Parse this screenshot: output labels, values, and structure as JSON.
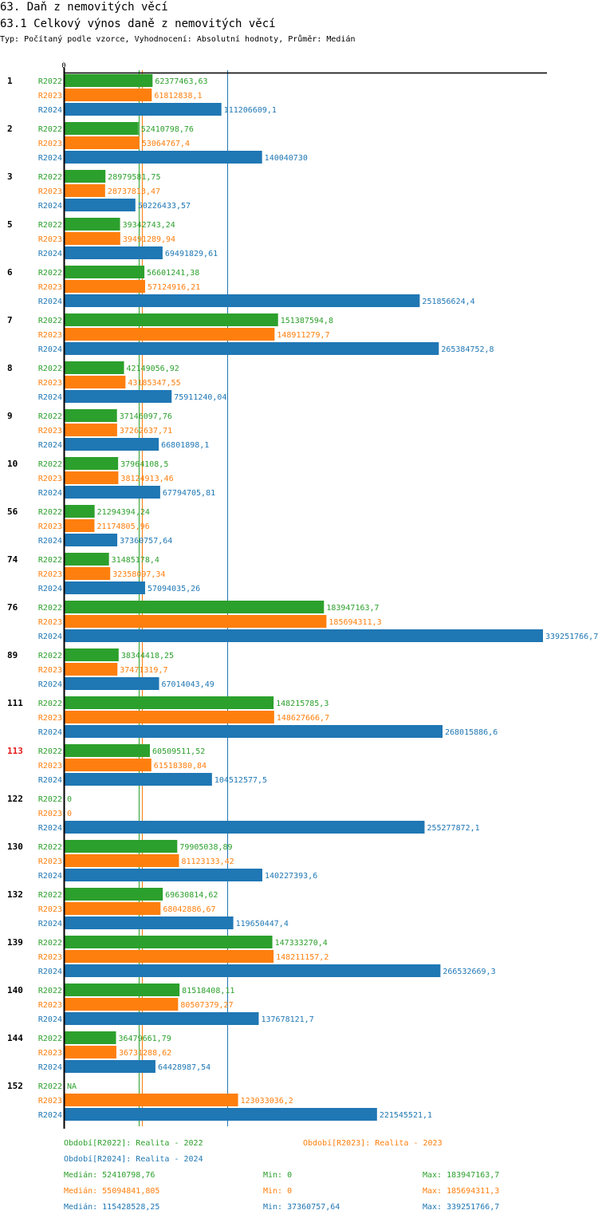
{
  "header": {
    "title": "63. Daň z nemovitých věcí",
    "subtitle": "63.1 Celkový výnos daně z nemovitých věcí",
    "description": "Typ: Počítaný podle vzorce, Vyhodnocení: Absolutní hodnoty, Průměr: Medián"
  },
  "chart_data": {
    "type": "bar",
    "orientation": "horizontal",
    "title": "63.1 Celkový výnos daně z nemovitých věcí",
    "xlabel": "",
    "ylabel": "",
    "xlim": [
      0,
      339251766.7
    ],
    "axis_zero_label": "0",
    "grid": false,
    "highlighted_category": "113",
    "highlight_color": "#e41a1c",
    "categories": [
      "1",
      "2",
      "3",
      "5",
      "6",
      "7",
      "8",
      "9",
      "10",
      "56",
      "74",
      "76",
      "89",
      "111",
      "113",
      "122",
      "130",
      "132",
      "139",
      "140",
      "144",
      "152"
    ],
    "series": [
      {
        "name": "R2022",
        "color": "#2ca02c",
        "values": [
          62377463.63,
          52410798.76,
          28979581.75,
          39342743.24,
          56601241.38,
          151387594.8,
          42149056.92,
          37146097.76,
          37964108.5,
          21294394.24,
          31485178.4,
          183947163.7,
          38344418.25,
          148215785.3,
          60509511.52,
          0,
          79905038.89,
          69630814.62,
          147333270.4,
          81518408.11,
          36479661.79,
          null
        ],
        "labels": [
          "62377463,63",
          "52410798,76",
          "28979581,75",
          "39342743,24",
          "56601241,38",
          "151387594,8",
          "42149056,92",
          "37146097,76",
          "37964108,5",
          "21294394,24",
          "31485178,4",
          "183947163,7",
          "38344418,25",
          "148215785,3",
          "60509511,52",
          "0",
          "79905038,89",
          "69630814,62",
          "147333270,4",
          "81518408,11",
          "36479661,79",
          "NA"
        ],
        "median": 52410798.76
      },
      {
        "name": "R2023",
        "color": "#ff7f0e",
        "values": [
          61812838.1,
          53064767.4,
          28737813.47,
          39491289.94,
          57124916.21,
          148911279.7,
          43185347.55,
          37262637.71,
          38124913.46,
          21174805.96,
          32358097.34,
          185694311.3,
          37471319.7,
          148627666.7,
          61518380.84,
          0,
          81123133.42,
          68042886.67,
          148211157.2,
          80507379.27,
          36731288.62,
          123033036.2
        ],
        "labels": [
          "61812838,1",
          "53064767,4",
          "28737813,47",
          "39491289,94",
          "57124916,21",
          "148911279,7",
          "43185347,55",
          "37262637,71",
          "38124913,46",
          "21174805,96",
          "32358097,34",
          "185694311,3",
          "37471319,7",
          "148627666,7",
          "61518380,84",
          "0",
          "81123133,42",
          "68042886,67",
          "148211157,2",
          "80507379,27",
          "36731288,62",
          "123033036,2"
        ],
        "median": 55094841.805
      },
      {
        "name": "R2024",
        "color": "#1f77b4",
        "values": [
          111206609.1,
          140040730,
          50226433.57,
          69491829.61,
          251856624.4,
          265384752.8,
          75911240.04,
          66801898.1,
          67794705.81,
          37360757.64,
          57094035.26,
          339251766.7,
          67014043.49,
          268015886.6,
          104512577.5,
          255277872.1,
          140227393.6,
          119650447.4,
          266532669.3,
          137678121.7,
          64428987.54,
          221545521.1
        ],
        "labels": [
          "111206609,1",
          "140040730",
          "50226433,57",
          "69491829,61",
          "251856624,4",
          "265384752,8",
          "75911240,04",
          "66801898,1",
          "67794705,81",
          "37360757,64",
          "57094035,26",
          "339251766,7",
          "67014043,49",
          "268015886,6",
          "104512577,5",
          "255277872,1",
          "140227393,6",
          "119650447,4",
          "266532669,3",
          "137678121,7",
          "64428987,54",
          "221545521,1"
        ],
        "median": 115428528.25
      }
    ],
    "legend": {
      "placement": "bottom",
      "entries": [
        {
          "text": "Období[R2022]: Realita - 2022",
          "color": "#2ca02c"
        },
        {
          "text": "Období[R2023]: Realita - 2023",
          "color": "#ff7f0e"
        },
        {
          "text": "Období[R2024]: Realita - 2024",
          "color": "#1f77b4"
        }
      ]
    },
    "stats": [
      {
        "series": "R2022",
        "color": "#2ca02c",
        "median": "Medián: 52410798,76",
        "min": "Min: 0",
        "max": "Max: 183947163,7"
      },
      {
        "series": "R2023",
        "color": "#ff7f0e",
        "median": "Medián: 55094841,805",
        "min": "Min: 0",
        "max": "Max: 185694311,3"
      },
      {
        "series": "R2024",
        "color": "#1f77b4",
        "median": "Medián: 115428528,25",
        "min": "Min: 37360757,64",
        "max": "Max: 339251766,7"
      }
    ]
  }
}
